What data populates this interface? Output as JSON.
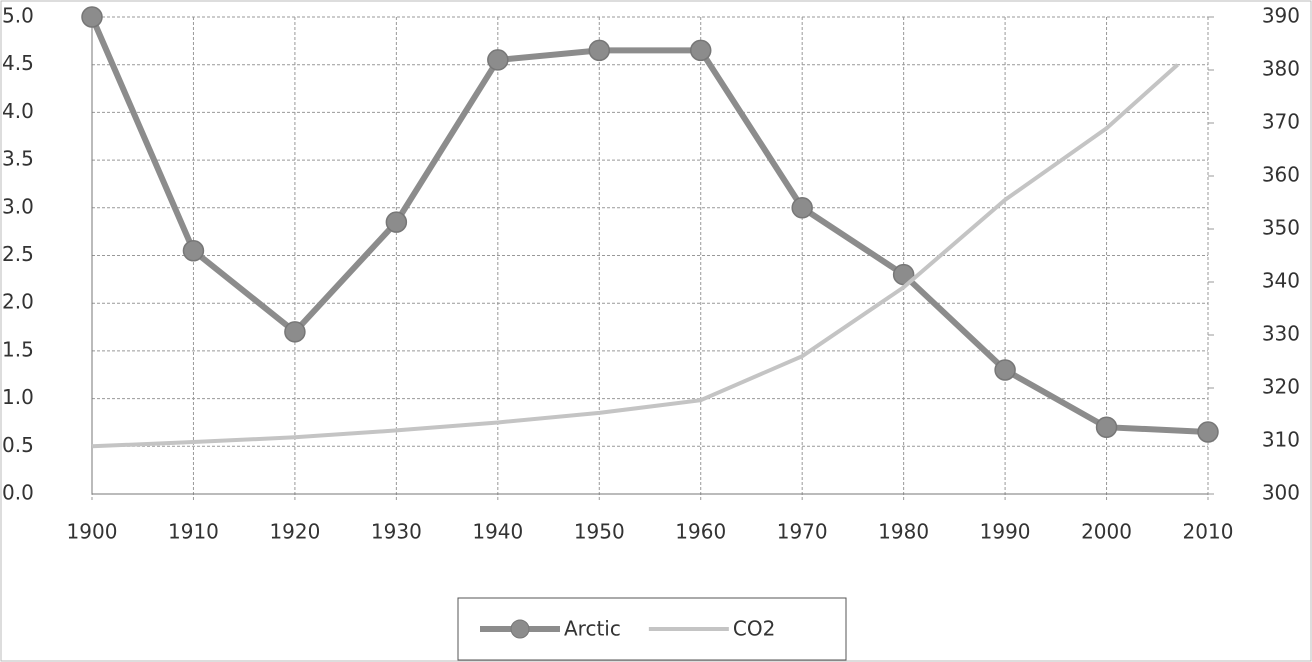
{
  "chart_data": {
    "type": "line",
    "xlim": [
      1900,
      2010
    ],
    "xticks": [
      1900,
      1910,
      1920,
      1930,
      1940,
      1950,
      1960,
      1970,
      1980,
      1990,
      2000,
      2010
    ],
    "ylim": [
      0,
      5
    ],
    "yticks": [
      {
        "value": 0,
        "label": "0.0"
      },
      0.5,
      {
        "value": 1,
        "label": "1.0"
      },
      1.5,
      {
        "value": 2,
        "label": "2.0"
      },
      2.5,
      {
        "value": 3,
        "label": "3.0"
      },
      3.5,
      {
        "value": 4,
        "label": "4.0"
      },
      4.5,
      {
        "value": 5,
        "label": "5.0"
      }
    ],
    "y2lim": [
      300,
      390
    ],
    "y2ticks": [
      300,
      310,
      320,
      330,
      340,
      350,
      360,
      370,
      380,
      390
    ],
    "grid": true,
    "legend": "bottom",
    "series": [
      {
        "name": "Arctic",
        "color": "#8c8c8c",
        "marker": "circle",
        "x": [
          1900,
          1910,
          1920,
          1930,
          1940,
          1950,
          1960,
          1970,
          1980,
          1990,
          2000,
          2010
        ],
        "values": [
          5.0,
          2.55,
          1.7,
          2.85,
          4.55,
          4.65,
          4.65,
          3.0,
          2.3,
          1.3,
          0.7,
          0.65
        ]
      },
      {
        "name": "CO2",
        "color": "#c4c4c4",
        "axis": "y2",
        "x": [
          1900,
          1910,
          1920,
          1930,
          1940,
          1950,
          1960,
          1970,
          1980,
          1990,
          2000,
          2007
        ],
        "values": [
          309,
          309.8,
          310.7,
          312,
          313.5,
          315.3,
          317.7,
          326,
          339,
          355.5,
          369,
          381
        ]
      }
    ]
  }
}
